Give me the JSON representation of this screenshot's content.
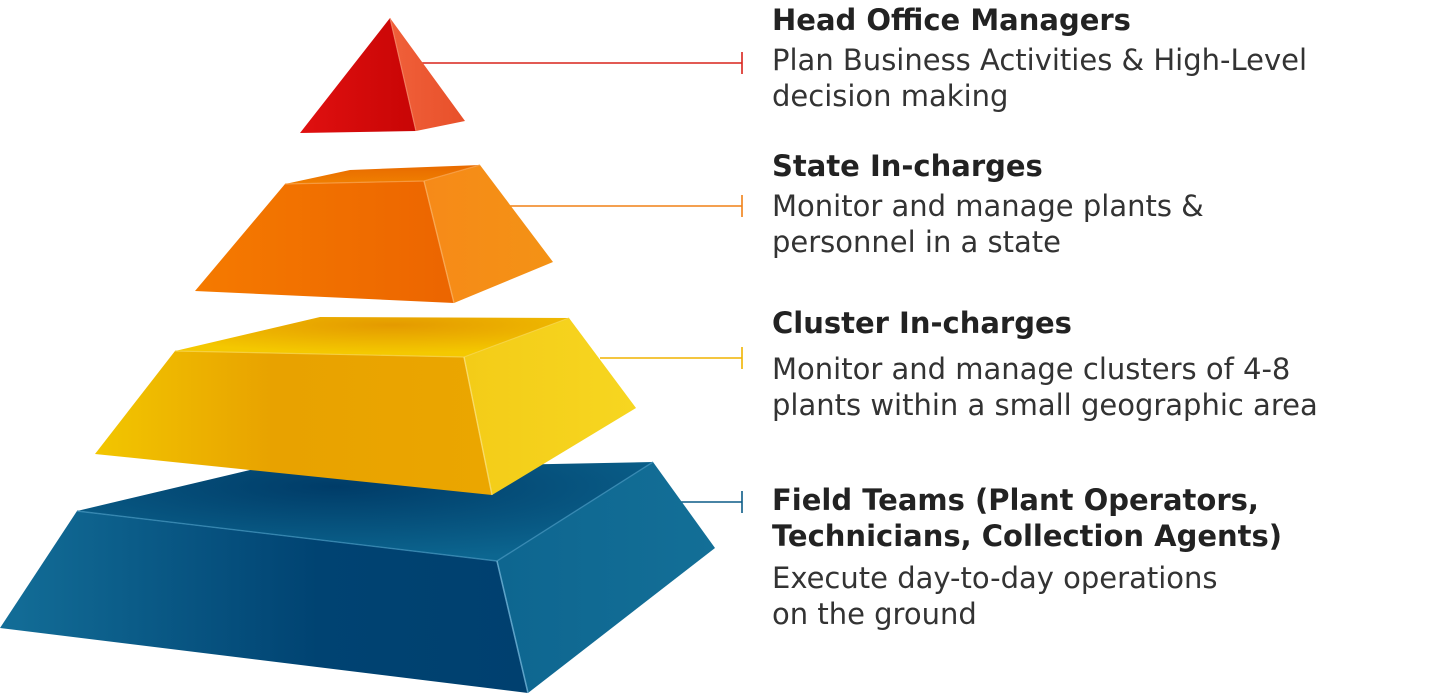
{
  "tiers": [
    {
      "id": "head-office",
      "title": "Head Office Managers",
      "description": "Plan Business Activities & High-Level\ndecision making",
      "color": "#d90e0e"
    },
    {
      "id": "state",
      "title": "State In-charges",
      "description": "Monitor and manage plants &\npersonnel in a state",
      "color": "#f07000"
    },
    {
      "id": "cluster",
      "title": "Cluster In-charges",
      "description": "Monitor and manage clusters of 4-8\nplants within a small geographic area",
      "color": "#f0b400"
    },
    {
      "id": "field",
      "title": "Field Teams (Plant Operators,\nTechnicians, Collection Agents)",
      "description": "Execute day-to-day operations\non the ground",
      "color": "#0b5b87"
    }
  ]
}
